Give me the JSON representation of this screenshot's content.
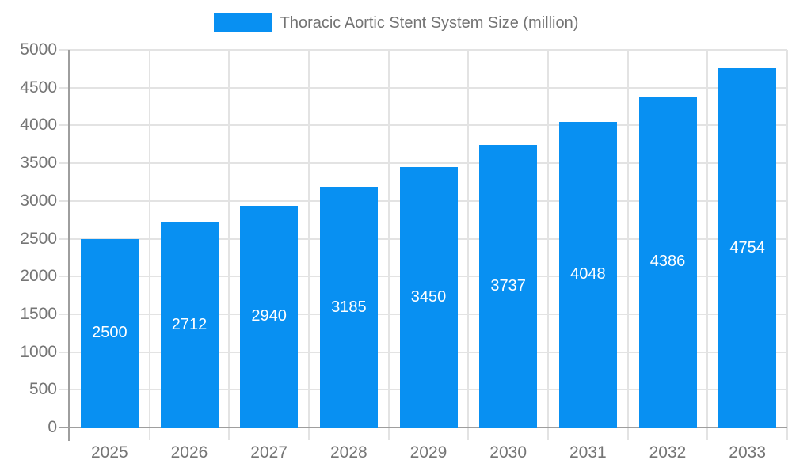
{
  "chart_data": {
    "type": "bar",
    "title": "Thoracic Aortic Stent System Size (million)",
    "categories": [
      "2025",
      "2026",
      "2027",
      "2028",
      "2029",
      "2030",
      "2031",
      "2032",
      "2033"
    ],
    "series": [
      {
        "name": "Thoracic Aortic Stent System Size (million)",
        "values": [
          2500,
          2712,
          2940,
          3185,
          3450,
          3737,
          4048,
          4386,
          4754
        ]
      }
    ],
    "xlabel": "",
    "ylabel": "",
    "ylim": [
      0,
      5000
    ],
    "ytick_step": 500,
    "yticks": [
      0,
      500,
      1000,
      1500,
      2000,
      2500,
      3000,
      3500,
      4000,
      4500,
      5000
    ],
    "grid": "on",
    "bar_value_labels": "inside-center",
    "legend": {
      "position": "top-center",
      "entries": [
        {
          "label": "Thoracic Aortic Stent System Size (million)",
          "color": "#0890f2"
        }
      ]
    },
    "colors": {
      "bar": "#0890f2",
      "bar_label": "#ffffff",
      "axis_label": "#757575",
      "legend_text": "#737373",
      "grid": "#e3e3e3",
      "axis_line": "#9e9e9e",
      "background": "#ffffff"
    }
  }
}
